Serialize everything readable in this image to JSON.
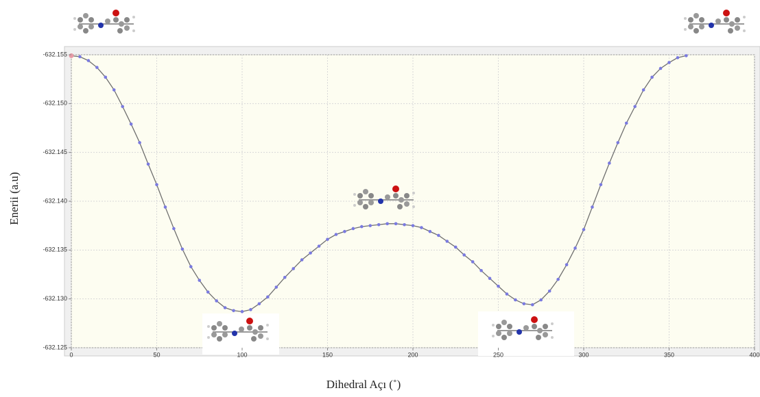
{
  "chart_data": {
    "type": "line",
    "x_label": "Dihedral Açı (˚)",
    "y_label": "Enerii (a.u)",
    "xlim": [
      0,
      400
    ],
    "xticks": [
      0,
      50,
      100,
      150,
      200,
      250,
      300,
      350,
      400
    ],
    "ylim": [
      -632.125,
      -632.155
    ],
    "yticks": [
      -632.125,
      {
        "value": -632.13,
        "label": "-632.130"
      },
      -632.135,
      {
        "value": -632.14,
        "label": "-632.140"
      },
      -632.145,
      {
        "value": -632.15,
        "label": "-632.150"
      },
      -632.155
    ],
    "grid": true,
    "series": [
      {
        "color": "#7a7ae0",
        "x": [
          0,
          5,
          10,
          15,
          20,
          25,
          30,
          35,
          40,
          45,
          50,
          55,
          60,
          65,
          70,
          75,
          80,
          85,
          90,
          95,
          100,
          105,
          110,
          115,
          120,
          125,
          130,
          135,
          140,
          145,
          150,
          155,
          160,
          165,
          170,
          175,
          180,
          185,
          190,
          195,
          200,
          205,
          210,
          215,
          220,
          225,
          230,
          235,
          240,
          245,
          250,
          255,
          260,
          265,
          270,
          275,
          280,
          285,
          290,
          295,
          300,
          305,
          310,
          315,
          320,
          325,
          330,
          335,
          340,
          345,
          350,
          355,
          360
        ],
        "values": [
          -632.1549,
          -632.1548,
          -632.1544,
          -632.1537,
          -632.1527,
          -632.1514,
          -632.1497,
          -632.1479,
          -632.146,
          -632.1438,
          -632.1417,
          -632.1394,
          -632.1372,
          -632.1351,
          -632.1333,
          -632.1319,
          -632.1307,
          -632.1298,
          -632.1291,
          -632.1288,
          -632.1287,
          -632.1289,
          -632.1295,
          -632.1302,
          -632.1312,
          -632.1322,
          -632.1331,
          -632.134,
          -632.1347,
          -632.1354,
          -632.1361,
          -632.1366,
          -632.1369,
          -632.1372,
          -632.1374,
          -632.1375,
          -632.1376,
          -632.1377,
          -632.1377,
          -632.1376,
          -632.1375,
          -632.1373,
          -632.1369,
          -632.1365,
          -632.1359,
          -632.1353,
          -632.1345,
          -632.1338,
          -632.1329,
          -632.1321,
          -632.1313,
          -632.1305,
          -632.1299,
          -632.1295,
          -632.1294,
          -632.1299,
          -632.1308,
          -632.132,
          -632.1335,
          -632.1352,
          -632.1371,
          -632.1394,
          -632.1417,
          -632.1439,
          -632.146,
          -632.148,
          -632.1497,
          -632.1514,
          -632.1527,
          -632.1536,
          -632.1542,
          -632.1547,
          -632.1549
        ]
      }
    ]
  }
}
